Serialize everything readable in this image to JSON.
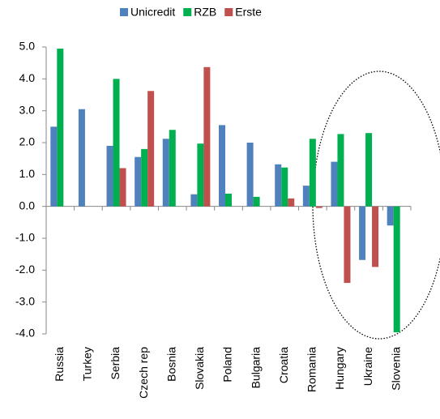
{
  "chart_data": {
    "type": "bar",
    "categories": [
      "Russia",
      "Turkey",
      "Serbia",
      "Czech rep",
      "Bosnia",
      "Slovakia",
      "Poland",
      "Bulgaria",
      "Croatia",
      "Romania",
      "Hungary",
      "Ukraine",
      "Slovenia"
    ],
    "series": [
      {
        "name": "Unicredit",
        "color": "#4f81bd",
        "values": [
          2.5,
          3.05,
          1.9,
          1.55,
          2.12,
          0.38,
          2.55,
          2.0,
          1.32,
          0.65,
          1.4,
          -1.68,
          -0.6
        ]
      },
      {
        "name": "RZB",
        "color": "#00b050",
        "values": [
          4.95,
          null,
          4.0,
          1.8,
          2.4,
          1.97,
          0.4,
          0.3,
          1.22,
          2.12,
          2.27,
          2.3,
          -3.95
        ]
      },
      {
        "name": "Erste",
        "color": "#c0504d",
        "values": [
          null,
          null,
          1.2,
          3.62,
          null,
          4.37,
          null,
          null,
          0.25,
          -0.05,
          -2.4,
          -1.9,
          null
        ]
      }
    ],
    "ylim": [
      -4,
      5
    ],
    "yticks": [
      {
        "value": -4,
        "label": "-4.0"
      },
      {
        "value": -3,
        "label": "-3.0"
      },
      {
        "value": -2,
        "label": "-2.0"
      },
      {
        "value": -1,
        "label": "-1.0"
      },
      {
        "value": 0,
        "label": "0.0"
      },
      {
        "value": 1,
        "label": "1.0"
      },
      {
        "value": 2,
        "label": "2.0"
      },
      {
        "value": 3,
        "label": "3.0"
      },
      {
        "value": 4,
        "label": "4.0"
      },
      {
        "value": 5,
        "label": "5.0"
      }
    ],
    "grid": false,
    "legend": "top"
  }
}
